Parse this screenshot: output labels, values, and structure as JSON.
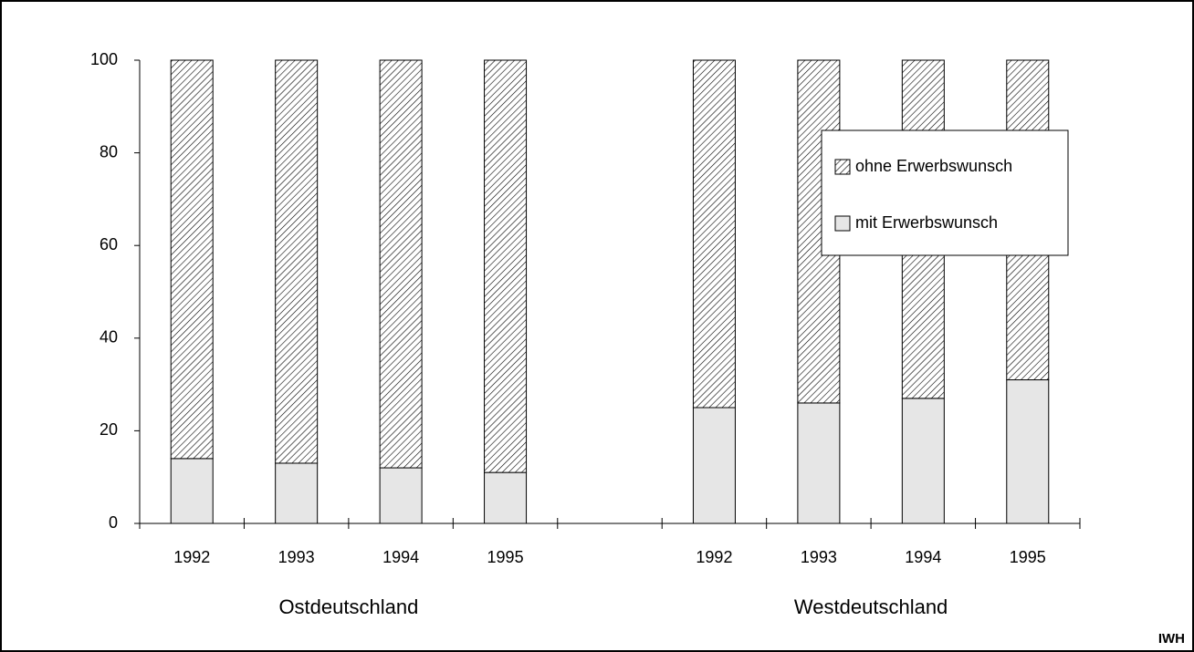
{
  "chart_data": {
    "type": "stacked_bar",
    "categories": [
      "1992",
      "1993",
      "1994",
      "1995",
      null,
      "1992",
      "1993",
      "1994",
      "1995"
    ],
    "group_labels": [
      "Ostdeutschland",
      "Westdeutschland"
    ],
    "series": [
      {
        "name": "mit Erwerbswunsch",
        "color": "#e6e6e6",
        "values": [
          14,
          13,
          12,
          11,
          null,
          25,
          26,
          27,
          31
        ]
      },
      {
        "name": "ohne Erwerbswunsch",
        "color": "hatch",
        "values": [
          86,
          87,
          88,
          89,
          null,
          75,
          74,
          73,
          69
        ]
      }
    ],
    "ylim": [
      0,
      100
    ],
    "yticks": [
      0,
      20,
      40,
      60,
      80,
      100
    ],
    "source": "IWH"
  }
}
